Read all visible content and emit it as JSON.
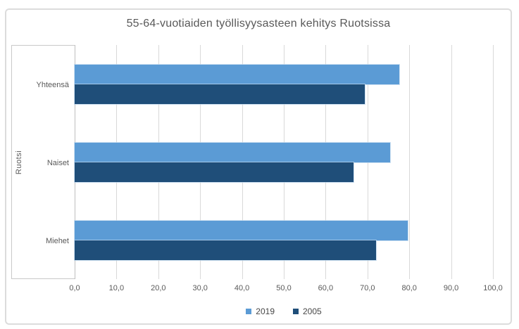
{
  "window": {
    "background": "#ffffff",
    "frame_border_color": "#dcdcdc"
  },
  "chart_data": {
    "type": "bar",
    "orientation": "horizontal",
    "title": "55-64-vuotiaiden työllisyysasteen kehitys Ruotsissa",
    "ylabel": "Ruotsi",
    "outer_category_label": "Ruotsi",
    "xlabel": "",
    "categories": [
      "Yhteensä",
      "Naiset",
      "Miehet"
    ],
    "series": [
      {
        "name": "2019",
        "color": "#5B9BD5",
        "values": [
          77.6,
          75.4,
          79.7
        ]
      },
      {
        "name": "2005",
        "color": "#1F4E79",
        "values": [
          69.3,
          66.6,
          72.1
        ]
      }
    ],
    "xlim": [
      0,
      100
    ],
    "x_ticks": [
      "0,0",
      "10,0",
      "20,0",
      "30,0",
      "40,0",
      "50,0",
      "60,0",
      "70,0",
      "80,0",
      "90,0",
      "100,0"
    ],
    "grid": true,
    "legend_position": "bottom",
    "legend": [
      "2019",
      "2005"
    ]
  },
  "style": {
    "text_color": "#595959",
    "grid_color": "#d9d9d9",
    "axis_line_color": "#bfbfbf",
    "series_2019_color": "#5B9BD5",
    "series_2005_color": "#1F4E79"
  }
}
